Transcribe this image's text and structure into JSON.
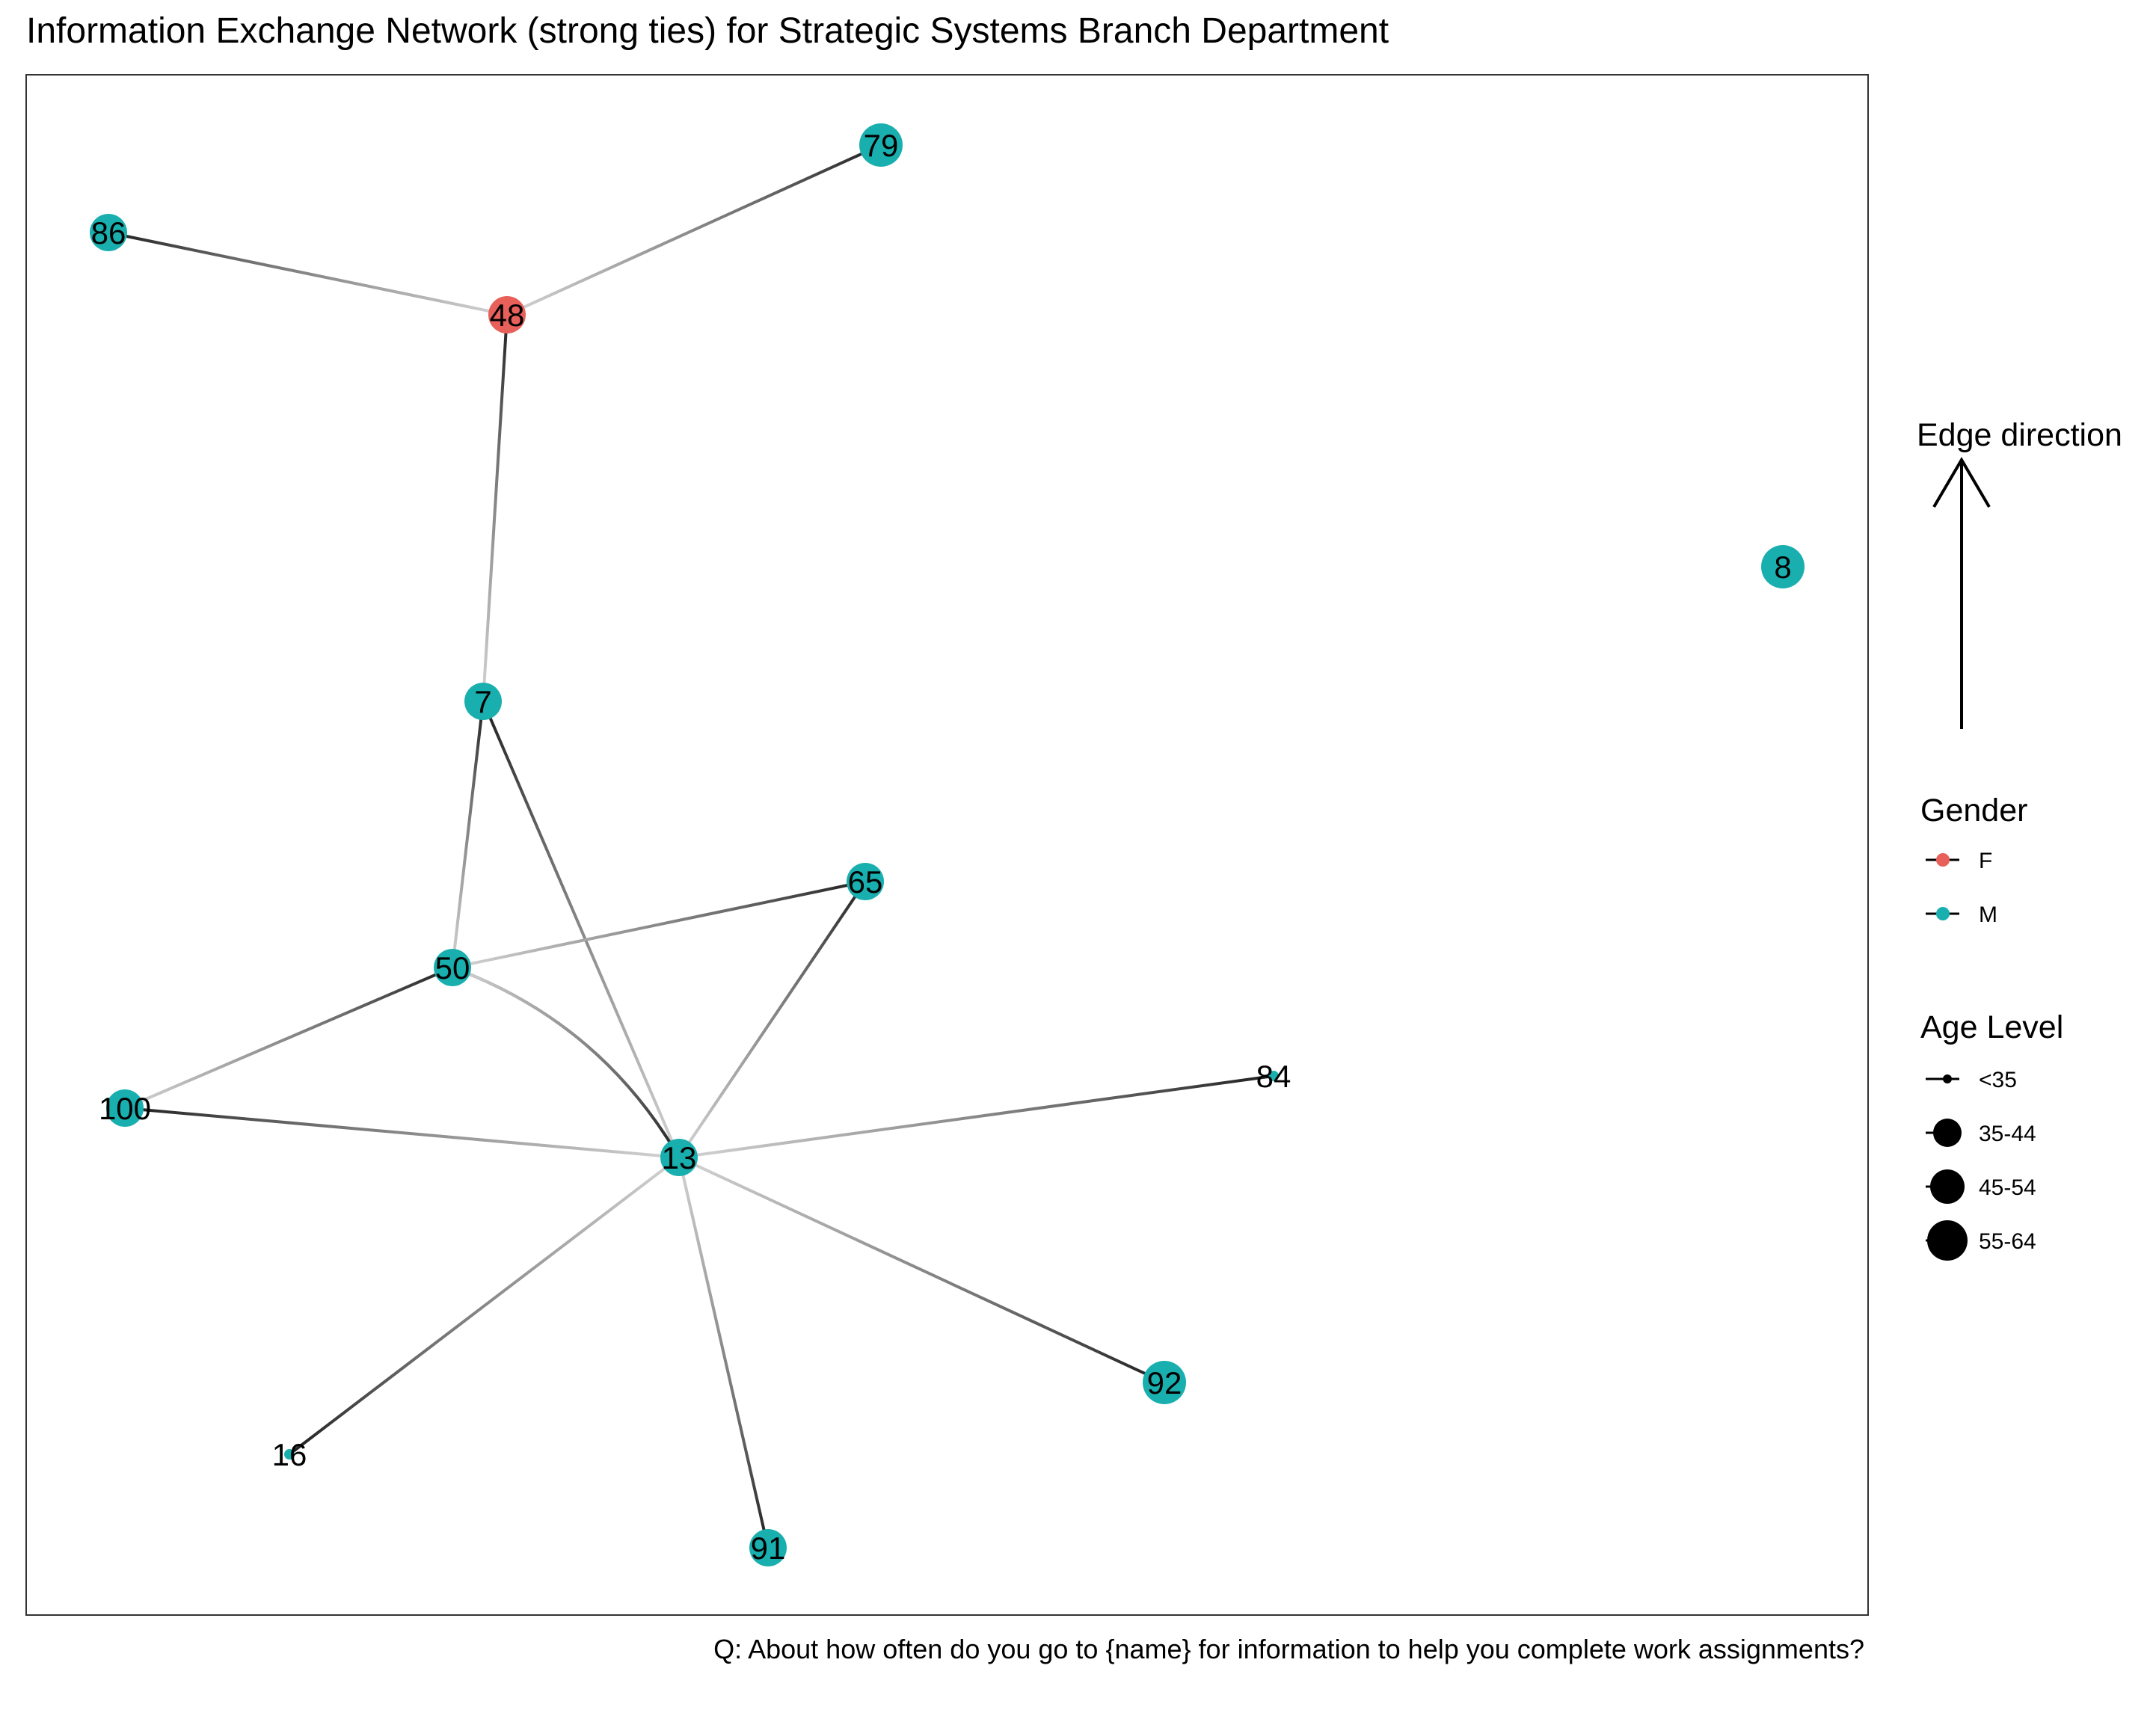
{
  "title": "Information Exchange Network (strong ties) for Strategic Systems Branch Department",
  "caption": "Q: About how often do you go to {name} for information to help you complete work assignments?",
  "legend": {
    "edge_direction_title": "Edge direction",
    "gender_title": "Gender",
    "gender_items": [
      {
        "label": "F",
        "color": "#E8605A"
      },
      {
        "label": "M",
        "color": "#1AAFAF"
      }
    ],
    "age_title": "Age Level",
    "age_items": [
      {
        "label": "<35",
        "level": 1
      },
      {
        "label": "35-44",
        "level": 2
      },
      {
        "label": "45-54",
        "level": 3
      },
      {
        "label": "55-64",
        "level": 4
      }
    ]
  },
  "colors": {
    "F": "#E8605A",
    "M": "#1AAFAF"
  },
  "nodes": [
    {
      "id": "79",
      "gender": "M",
      "age": "45-54"
    },
    {
      "id": "86",
      "gender": "M",
      "age": "35-44"
    },
    {
      "id": "48",
      "gender": "F",
      "age": "35-44"
    },
    {
      "id": "8",
      "gender": "M",
      "age": "45-54"
    },
    {
      "id": "7",
      "gender": "M",
      "age": "35-44"
    },
    {
      "id": "65",
      "gender": "M",
      "age": "35-44"
    },
    {
      "id": "50",
      "gender": "M",
      "age": "35-44"
    },
    {
      "id": "84",
      "gender": "M",
      "age": "<35"
    },
    {
      "id": "100",
      "gender": "M",
      "age": "35-44"
    },
    {
      "id": "13",
      "gender": "M",
      "age": "35-44"
    },
    {
      "id": "92",
      "gender": "M",
      "age": "45-54"
    },
    {
      "id": "16",
      "gender": "M",
      "age": "<35"
    },
    {
      "id": "91",
      "gender": "M",
      "age": "35-44"
    }
  ],
  "edges": [
    {
      "from": "48",
      "to": "79"
    },
    {
      "from": "48",
      "to": "86"
    },
    {
      "from": "7",
      "to": "48"
    },
    {
      "from": "50",
      "to": "7"
    },
    {
      "from": "13",
      "to": "7"
    },
    {
      "from": "50",
      "to": "65"
    },
    {
      "from": "13",
      "to": "65"
    },
    {
      "from": "100",
      "to": "50"
    },
    {
      "from": "13",
      "to": "50"
    },
    {
      "from": "50",
      "to": "13"
    },
    {
      "from": "13",
      "to": "100"
    },
    {
      "from": "13",
      "to": "84"
    },
    {
      "from": "13",
      "to": "92"
    },
    {
      "from": "13",
      "to": "16"
    },
    {
      "from": "13",
      "to": "91"
    }
  ]
}
